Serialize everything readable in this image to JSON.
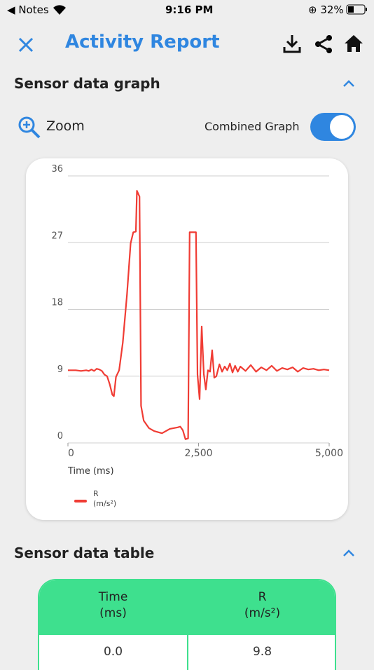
{
  "status_bar": {
    "back_app": "Notes",
    "time": "9:16 PM",
    "battery": "32%"
  },
  "header": {
    "title": "Activity Report"
  },
  "graph_section": {
    "title": "Sensor data graph",
    "zoom_label": "Zoom",
    "toggle_label": "Combined Graph"
  },
  "chart_data": {
    "type": "line",
    "x_label": "Time (ms)",
    "x": [
      0,
      150,
      250,
      350,
      400,
      450,
      500,
      550,
      600,
      650,
      700,
      750,
      800,
      850,
      880,
      920,
      980,
      1050,
      1130,
      1200,
      1250,
      1300,
      1320,
      1370,
      1400,
      1450,
      1550,
      1650,
      1800,
      1950,
      2100,
      2150,
      2200,
      2250,
      2300,
      2330,
      2400,
      2450,
      2480,
      2520,
      2560,
      2600,
      2640,
      2680,
      2720,
      2760,
      2800,
      2840,
      2900,
      2950,
      3000,
      3050,
      3100,
      3150,
      3200,
      3250,
      3300,
      3400,
      3500,
      3600,
      3700,
      3800,
      3900,
      4000,
      4100,
      4200,
      4300,
      4400,
      4500,
      4600,
      4700,
      4800,
      4900,
      5000
    ],
    "series": [
      {
        "name": "R",
        "unit": "(m/s²)",
        "color": "#f03c34",
        "values": [
          9.8,
          9.8,
          9.7,
          9.8,
          9.7,
          9.9,
          9.7,
          10.0,
          9.9,
          9.7,
          9.2,
          9.0,
          7.9,
          6.5,
          6.3,
          8.9,
          9.8,
          13.5,
          20.0,
          26.9,
          28.4,
          28.5,
          34.0,
          33.2,
          5.0,
          3.0,
          2.0,
          1.6,
          1.3,
          1.9,
          2.1,
          2.2,
          1.7,
          0.5,
          0.6,
          28.4,
          28.4,
          28.4,
          9.2,
          5.9,
          15.7,
          9.3,
          7.2,
          9.8,
          9.6,
          12.5,
          8.8,
          9.0,
          10.6,
          9.6,
          10.3,
          9.8,
          10.7,
          9.5,
          10.4,
          9.6,
          10.3,
          9.7,
          10.5,
          9.6,
          10.2,
          9.8,
          10.4,
          9.7,
          10.1,
          9.9,
          10.2,
          9.6,
          10.1,
          9.9,
          10.0,
          9.8,
          9.9,
          9.8
        ]
      }
    ],
    "xlim": [
      0,
      5000
    ],
    "xticks": [
      0,
      {
        "value": 2500,
        "label": "2,500"
      },
      {
        "value": 5000,
        "label": "5,000"
      }
    ],
    "ylim": [
      0,
      36
    ],
    "yticks": [
      0,
      9,
      18,
      27,
      36
    ],
    "grid": true
  },
  "table_section": {
    "title": "Sensor data table",
    "columns": [
      {
        "name": "Time",
        "unit": "(ms)"
      },
      {
        "name": "R",
        "unit": "(m/s²)"
      }
    ],
    "rows": [
      [
        "0.0",
        "9.8"
      ]
    ]
  }
}
